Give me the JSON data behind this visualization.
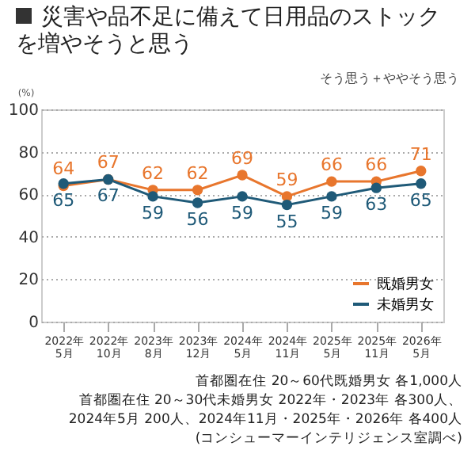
{
  "chart_data": {
    "type": "line",
    "title": "災害や品不足に備えて日用品のストックを増やそうと思う",
    "subtitle": "そう思う＋ややそう思う",
    "ylabel": "(%)",
    "categories": [
      "2022年\n5月",
      "2022年\n10月",
      "2023年\n8月",
      "2023年\n12月",
      "2024年\n5月",
      "2024年\n11月",
      "2025年\n5月",
      "2025年\n11月",
      "2026年\n5月"
    ],
    "series": [
      {
        "name": "既婚男女",
        "color": "#e8762d",
        "values": [
          64,
          67,
          62,
          62,
          69,
          59,
          66,
          66,
          71
        ]
      },
      {
        "name": "未婚男女",
        "color": "#1f5a78",
        "values": [
          65,
          67,
          59,
          56,
          59,
          55,
          59,
          63,
          65
        ]
      }
    ],
    "ylim": [
      0,
      100
    ],
    "yticks": [
      0,
      20,
      40,
      60,
      80,
      100
    ],
    "grid": "y",
    "legend": "bottom right",
    "marker": "circle",
    "line_style": "solid",
    "data_labels": true,
    "annotations": [
      "首都圏在住 20～60代既婚男女 各1,000人",
      "首都圏在住 20～30代未婚男女 2022年・2023年 各300人、",
      "2024年5月 200人、2024年11月・2025年・2026年 各400人",
      "(コンシューマーインテリジェンス室調べ)"
    ]
  }
}
